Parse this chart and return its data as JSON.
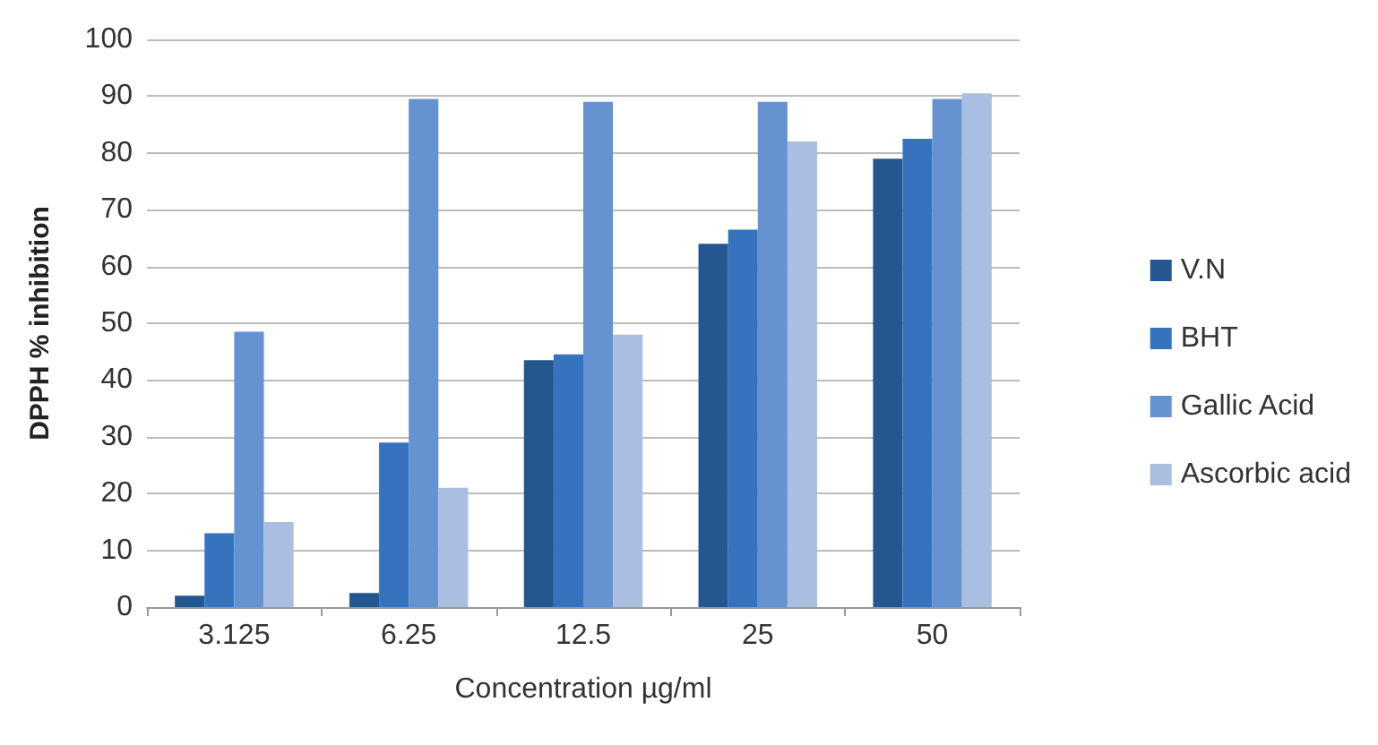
{
  "chart_data": {
    "type": "bar",
    "xlabel": "Concentration µg/ml",
    "ylabel": "DPPH % inhibition",
    "categories": [
      "3.125",
      "6.25",
      "12.5",
      "25",
      "50"
    ],
    "series": [
      {
        "name": "V.N",
        "color": "#24578f",
        "values": [
          2,
          2.5,
          43.5,
          64,
          79
        ]
      },
      {
        "name": "BHT",
        "color": "#3573bf",
        "values": [
          13,
          29,
          44.5,
          66.5,
          82.5
        ]
      },
      {
        "name": "Gallic Acid",
        "color": "#6592d0",
        "values": [
          48.5,
          89.5,
          89,
          89,
          89.5
        ]
      },
      {
        "name": "Ascorbic acid",
        "color": "#a9bee0",
        "values": [
          15,
          21,
          48,
          82,
          90.5
        ]
      }
    ],
    "ylim": [
      0,
      100
    ],
    "yticks": [
      0,
      10,
      20,
      30,
      40,
      50,
      60,
      70,
      80,
      90,
      100
    ],
    "grid": "y",
    "legend": "right"
  }
}
